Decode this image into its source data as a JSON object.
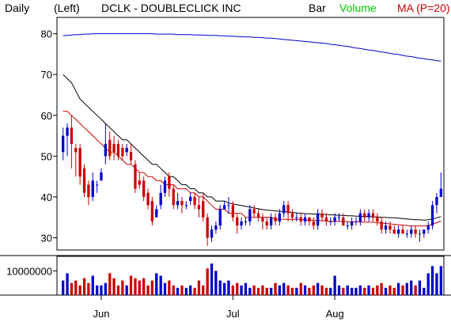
{
  "header": {
    "period": "Daily",
    "axis_side": "(Left)",
    "title": "DCLK - DOUBLECLICK INC",
    "style": "Bar",
    "volume_label": "Volume",
    "ma_label": "MA (P=20)"
  },
  "colors": {
    "up": "#0000cc",
    "down": "#cc0000",
    "volume_label": "#00cc00",
    "ma20": "#cc0000",
    "ma50": "#000000",
    "ma200": "#0000cc"
  },
  "chart_data": {
    "type": "candlestick",
    "price_axis": {
      "ylim": [
        27,
        84
      ],
      "ticks": [
        "80",
        "70",
        "60",
        "50",
        "40",
        "30"
      ]
    },
    "volume_axis": {
      "ylim": [
        0,
        16000000
      ],
      "ticks": [
        "10000000"
      ]
    },
    "x_labels": [
      "Jun",
      "Jul",
      "Aug"
    ],
    "x_label_index": [
      9,
      40,
      64
    ],
    "candles": [
      [
        51,
        55,
        57,
        49,
        6000000
      ],
      [
        55,
        57,
        58,
        50,
        9000000
      ],
      [
        57,
        53,
        60,
        47,
        5000000
      ],
      [
        52,
        51,
        53,
        45,
        6000000
      ],
      [
        52,
        45,
        53,
        43,
        4000000
      ],
      [
        47,
        41,
        48,
        40,
        7000000
      ],
      [
        43,
        40,
        44,
        38,
        5000000
      ],
      [
        40,
        44,
        46,
        39,
        8000000
      ],
      [
        43,
        43,
        44,
        41,
        4000000
      ],
      [
        44,
        46,
        47,
        44,
        4000000
      ],
      [
        50,
        53,
        58,
        48,
        5000000
      ],
      [
        54,
        50,
        56,
        49,
        9000000
      ],
      [
        53,
        51,
        55,
        49,
        7000000
      ],
      [
        53,
        50,
        54,
        49,
        4000000
      ],
      [
        52,
        50,
        53,
        49,
        6000000
      ],
      [
        51,
        52,
        53,
        50,
        4000000
      ],
      [
        51,
        49,
        53,
        48,
        8000000
      ],
      [
        48,
        42,
        49,
        41,
        7000000
      ],
      [
        44,
        43,
        46,
        42,
        6000000
      ],
      [
        44,
        40,
        45,
        39,
        7000000
      ],
      [
        41,
        38,
        42,
        37,
        4000000
      ],
      [
        39,
        34,
        40,
        33,
        6000000
      ],
      [
        35,
        37,
        38,
        35,
        9000000
      ],
      [
        38,
        41,
        43,
        37,
        8000000
      ],
      [
        41,
        44,
        45,
        40,
        5000000
      ],
      [
        45,
        42,
        46,
        40,
        6000000
      ],
      [
        42,
        38,
        43,
        37,
        4000000
      ],
      [
        38,
        39,
        41,
        37,
        3000000
      ],
      [
        39,
        38,
        40,
        36,
        4000000
      ],
      [
        38,
        38,
        39,
        37,
        3000000
      ],
      [
        39,
        40,
        41,
        38,
        4000000
      ],
      [
        40,
        38,
        41,
        37,
        3000000
      ],
      [
        38,
        37,
        40,
        35,
        6000000
      ],
      [
        39,
        35,
        41,
        34,
        4000000
      ],
      [
        35,
        30,
        36,
        28,
        11000000
      ],
      [
        30,
        32,
        33,
        29,
        13000000
      ],
      [
        32,
        33,
        34,
        31,
        10000000
      ],
      [
        33,
        37,
        38,
        32,
        6000000
      ],
      [
        37,
        38,
        39,
        37,
        5000000
      ],
      [
        38,
        38,
        40,
        36,
        6000000
      ],
      [
        38,
        35,
        39,
        34,
        4000000
      ],
      [
        35,
        33,
        36,
        31,
        5000000
      ],
      [
        33,
        34,
        35,
        32,
        4000000
      ],
      [
        34,
        34,
        35,
        33,
        5000000
      ],
      [
        34,
        37,
        38,
        33,
        3000000
      ],
      [
        37,
        36,
        38,
        35,
        4000000
      ],
      [
        36,
        35,
        37,
        34,
        3000000
      ],
      [
        35,
        34,
        36,
        32,
        4000000
      ],
      [
        34,
        33,
        35,
        32,
        3000000
      ],
      [
        33,
        35,
        36,
        32,
        3000000
      ],
      [
        35,
        34,
        36,
        33,
        5000000
      ],
      [
        34,
        36,
        37,
        33,
        4000000
      ],
      [
        36,
        38,
        39,
        35,
        5000000
      ],
      [
        38,
        36,
        39,
        34,
        4000000
      ],
      [
        36,
        35,
        37,
        34,
        3000000
      ],
      [
        35,
        35,
        36,
        34,
        3000000
      ],
      [
        35,
        34,
        36,
        33,
        5000000
      ],
      [
        34,
        35,
        36,
        33,
        4000000
      ],
      [
        35,
        34,
        35,
        33,
        3000000
      ],
      [
        34,
        33,
        35,
        32,
        4000000
      ],
      [
        33,
        36,
        37,
        32,
        5000000
      ],
      [
        36,
        35,
        37,
        34,
        4000000
      ],
      [
        35,
        34,
        36,
        33,
        3000000
      ],
      [
        34,
        34,
        35,
        33,
        3000000
      ],
      [
        34,
        35,
        36,
        33,
        8000000
      ],
      [
        35,
        35,
        36,
        34,
        4000000
      ],
      [
        35,
        33,
        36,
        33,
        3000000
      ],
      [
        33,
        33,
        34,
        32,
        4000000
      ],
      [
        33,
        34,
        35,
        32,
        3000000
      ],
      [
        34,
        34,
        35,
        33,
        3000000
      ],
      [
        34,
        36,
        37,
        33,
        4000000
      ],
      [
        36,
        35,
        37,
        34,
        3000000
      ],
      [
        35,
        36,
        37,
        34,
        4000000
      ],
      [
        36,
        35,
        37,
        34,
        3000000
      ],
      [
        35,
        34,
        36,
        33,
        4000000
      ],
      [
        34,
        32,
        35,
        31,
        5000000
      ],
      [
        32,
        33,
        34,
        31,
        3000000
      ],
      [
        33,
        32,
        34,
        31,
        4000000
      ],
      [
        32,
        31,
        33,
        31,
        3000000
      ],
      [
        31,
        32,
        33,
        30,
        5000000
      ],
      [
        32,
        31,
        33,
        31,
        4000000
      ],
      [
        31,
        31,
        32,
        30,
        5000000
      ],
      [
        31,
        32,
        33,
        30,
        6000000
      ],
      [
        32,
        31,
        33,
        30,
        4000000
      ],
      [
        31,
        31,
        32,
        29,
        6000000
      ],
      [
        31,
        32,
        32,
        30,
        3000000
      ],
      [
        32,
        33,
        34,
        31,
        9000000
      ],
      [
        33,
        38,
        39,
        32,
        12000000
      ],
      [
        38,
        40,
        41,
        36,
        9000000
      ],
      [
        40,
        42,
        46,
        40,
        12000000
      ]
    ],
    "ma20": [
      61,
      61,
      60,
      59,
      58,
      57,
      56,
      55,
      54,
      53,
      52,
      51,
      51,
      50,
      49,
      48,
      48,
      47,
      46,
      46,
      45,
      45,
      44,
      44,
      43,
      43,
      43,
      42,
      42,
      42,
      41,
      41,
      40,
      40,
      39,
      38,
      37,
      37,
      37,
      36,
      36,
      36,
      36,
      35,
      35,
      35,
      35,
      35,
      35,
      35,
      34.5,
      34.5,
      34.5,
      34.5,
      34.5,
      34.5,
      34.5,
      34.3,
      34.3,
      34.3,
      34.2,
      34.2,
      34.1,
      34.0,
      34.0,
      34.0,
      34.0,
      33.9,
      33.9,
      33.9,
      33.9,
      33.8,
      33.8,
      33.8,
      33.7,
      33.6,
      33.5,
      33.4,
      33.3,
      33.2,
      33.1,
      33.0,
      32.9,
      32.9,
      32.9,
      32.9,
      33.0,
      33.3,
      33.7,
      34.1
    ],
    "ma50": [
      70,
      69,
      68,
      66,
      64,
      63,
      62,
      61,
      60,
      59,
      58,
      57,
      56,
      55,
      54,
      54,
      53,
      52,
      51,
      50,
      49,
      48,
      48,
      47,
      46,
      45,
      45,
      44,
      43,
      43,
      42,
      42,
      41,
      41,
      40,
      40,
      39,
      39,
      39,
      38.5,
      38.3,
      38.1,
      37.9,
      37.7,
      37.5,
      37.3,
      37.1,
      36.9,
      36.8,
      36.7,
      36.6,
      36.5,
      36.4,
      36.3,
      36.2,
      36.1,
      36.0,
      35.9,
      35.9,
      35.8,
      35.8,
      35.7,
      35.7,
      35.6,
      35.6,
      35.5,
      35.5,
      35.4,
      35.4,
      35.3,
      35.3,
      35.2,
      35.2,
      35.1,
      35.1,
      35.0,
      35.0,
      34.9,
      34.9,
      34.8,
      34.7,
      34.6,
      34.5,
      34.4,
      34.4,
      34.3,
      34.4,
      34.6,
      34.9,
      35.2
    ],
    "ma200": [
      79.5,
      79.6,
      79.7,
      79.8,
      79.8,
      79.9,
      79.9,
      80.0,
      80.0,
      80.0,
      80.0,
      80.0,
      80.0,
      80.0,
      80.0,
      80.0,
      80.0,
      80.0,
      80.0,
      80.0,
      80.0,
      80.0,
      79.9,
      79.9,
      79.9,
      79.9,
      79.9,
      79.8,
      79.8,
      79.8,
      79.8,
      79.7,
      79.7,
      79.7,
      79.6,
      79.6,
      79.6,
      79.5,
      79.5,
      79.4,
      79.4,
      79.3,
      79.3,
      79.2,
      79.2,
      79.1,
      79.1,
      79.0,
      78.9,
      78.9,
      78.8,
      78.7,
      78.6,
      78.5,
      78.4,
      78.3,
      78.2,
      78.1,
      78.0,
      77.9,
      77.8,
      77.7,
      77.6,
      77.4,
      77.3,
      77.2,
      77.0,
      76.9,
      76.7,
      76.5,
      76.4,
      76.2,
      76.0,
      75.9,
      75.7,
      75.5,
      75.4,
      75.2,
      75.0,
      74.9,
      74.7,
      74.5,
      74.4,
      74.2,
      74.0,
      73.9,
      73.7,
      73.6,
      73.4,
      73.3
    ]
  }
}
